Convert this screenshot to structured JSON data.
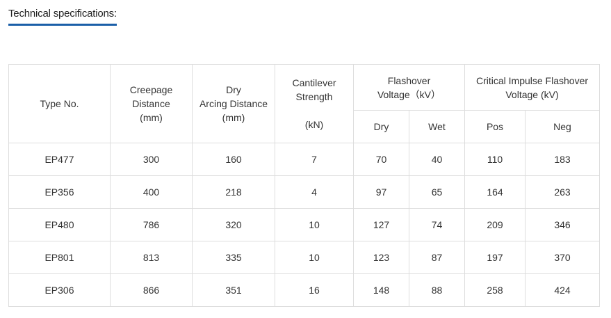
{
  "title": "Technical specifications:",
  "headers": {
    "type_no": "Type No.",
    "creepage": [
      "Creepage",
      "Distance",
      "(mm)"
    ],
    "arcing": [
      "Dry",
      "Arcing Distance",
      "(mm)"
    ],
    "cantilever": [
      "Cantilever",
      "Strength",
      "(kN)"
    ],
    "flashover": [
      "Flashover",
      "Voltage（kV）"
    ],
    "impulse": [
      "Critical Impulse Flashover",
      "Voltage (kV)"
    ],
    "sub": [
      "Dry",
      "Wet",
      "Pos",
      "Neg"
    ]
  },
  "rows": [
    [
      "EP477",
      "300",
      "160",
      "7",
      "70",
      "40",
      "110",
      "183"
    ],
    [
      "EP356",
      "400",
      "218",
      "4",
      "97",
      "65",
      "164",
      "263"
    ],
    [
      "EP480",
      "786",
      "320",
      "10",
      "127",
      "74",
      "209",
      "346"
    ],
    [
      "EP801",
      "813",
      "335",
      "10",
      "123",
      "87",
      "197",
      "370"
    ],
    [
      "EP306",
      "866",
      "351",
      "16",
      "148",
      "88",
      "258",
      "424"
    ]
  ],
  "colors": {
    "accent": "#1a5fa8",
    "border": "#dddddd"
  }
}
